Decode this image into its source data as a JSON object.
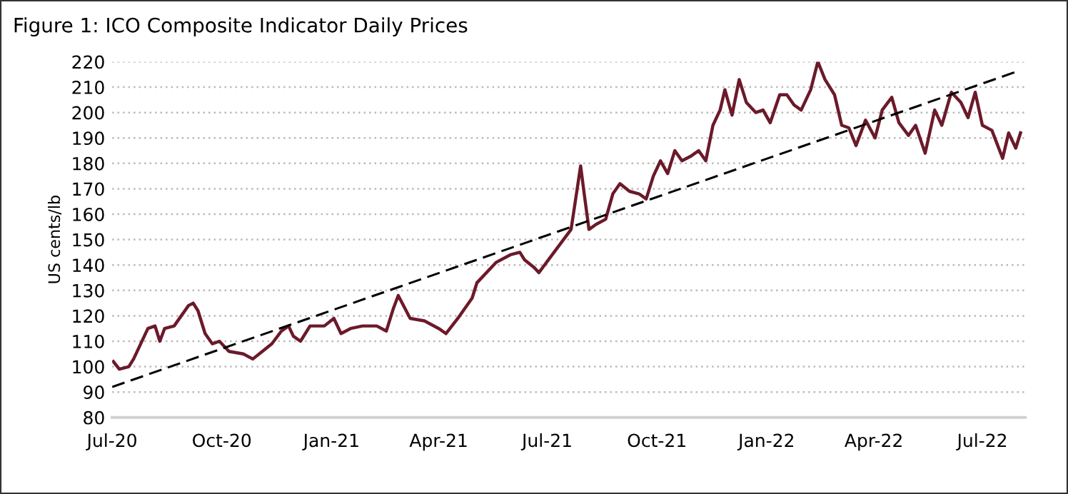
{
  "chart_data": {
    "type": "line",
    "title": "Figure 1: ICO Composite Indicator Daily Prices",
    "ylabel": "US cents/lb",
    "xlim": [
      "2020-07-01",
      "2022-08-06"
    ],
    "ylim": [
      80,
      220
    ],
    "xticks": [
      {
        "value": "2020-07-01",
        "label": "Jul-20"
      },
      {
        "value": "2020-10-01",
        "label": "Oct-20"
      },
      {
        "value": "2021-01-01",
        "label": "Jan-21"
      },
      {
        "value": "2021-04-01",
        "label": "Apr-21"
      },
      {
        "value": "2021-07-01",
        "label": "Jul-21"
      },
      {
        "value": "2021-10-01",
        "label": "Oct-21"
      },
      {
        "value": "2022-01-01",
        "label": "Jan-22"
      },
      {
        "value": "2022-04-01",
        "label": "Apr-22"
      },
      {
        "value": "2022-07-01",
        "label": "Jul-22"
      }
    ],
    "yticks": [
      80,
      90,
      100,
      110,
      120,
      130,
      140,
      150,
      160,
      170,
      180,
      190,
      200,
      210,
      220
    ],
    "grid": "y",
    "marker": "none",
    "series": [
      {
        "color": "#6b1a2a",
        "line_style": "solid",
        "x": [
          "2020-07-02",
          "2020-07-07",
          "2020-07-15",
          "2020-07-19",
          "2020-07-23",
          "2020-07-31",
          "2020-08-06",
          "2020-08-10",
          "2020-08-14",
          "2020-08-22",
          "2020-08-28",
          "2020-09-03",
          "2020-09-07",
          "2020-09-11",
          "2020-09-17",
          "2020-09-23",
          "2020-09-29",
          "2020-10-07",
          "2020-10-19",
          "2020-10-27",
          "2020-11-04",
          "2020-11-12",
          "2020-11-20",
          "2020-11-26",
          "2020-11-30",
          "2020-12-06",
          "2020-12-14",
          "2020-12-26",
          "2021-01-03",
          "2021-01-09",
          "2021-01-17",
          "2021-01-27",
          "2021-02-08",
          "2021-02-16",
          "2021-02-22",
          "2021-02-26",
          "2021-03-08",
          "2021-03-20",
          "2021-04-01",
          "2021-04-07",
          "2021-04-17",
          "2021-04-29",
          "2021-05-03",
          "2021-05-19",
          "2021-05-31",
          "2021-06-08",
          "2021-06-12",
          "2021-06-20",
          "2021-06-24",
          "2021-07-21",
          "2021-07-29",
          "2021-08-01",
          "2021-08-05",
          "2021-08-11",
          "2021-08-19",
          "2021-08-25",
          "2021-08-31",
          "2021-09-08",
          "2021-09-16",
          "2021-09-22",
          "2021-09-28",
          "2021-10-04",
          "2021-10-10",
          "2021-10-16",
          "2021-10-22",
          "2021-10-30",
          "2021-11-05",
          "2021-11-11",
          "2021-11-17",
          "2021-11-23",
          "2021-11-27",
          "2021-12-03",
          "2021-12-09",
          "2021-12-15",
          "2021-12-23",
          "2021-12-29",
          "2022-01-04",
          "2022-01-12",
          "2022-01-18",
          "2022-01-24",
          "2022-01-30",
          "2022-02-07",
          "2022-02-13",
          "2022-02-19",
          "2022-02-27",
          "2022-03-05",
          "2022-03-11",
          "2022-03-17",
          "2022-03-25",
          "2022-04-02",
          "2022-04-08",
          "2022-04-16",
          "2022-04-22",
          "2022-04-30",
          "2022-05-06",
          "2022-05-14",
          "2022-05-22",
          "2022-05-28",
          "2022-06-05",
          "2022-06-13",
          "2022-06-19",
          "2022-06-25",
          "2022-07-01",
          "2022-07-09",
          "2022-07-18",
          "2022-07-23",
          "2022-07-29",
          "2022-08-02"
        ],
        "values": [
          102,
          99,
          100,
          103,
          107,
          115,
          116,
          110,
          115,
          116,
          120,
          124,
          125,
          122,
          113,
          109,
          110,
          106,
          105,
          103,
          106,
          109,
          114,
          116,
          112,
          110,
          116,
          116,
          119,
          113,
          115,
          116,
          116,
          114,
          123,
          128,
          119,
          118,
          115,
          113,
          119,
          127,
          133,
          141,
          144,
          145,
          142,
          139,
          137,
          154,
          179,
          168,
          154,
          156,
          158,
          168,
          172,
          169,
          168,
          166,
          175,
          181,
          176,
          185,
          181,
          183,
          185,
          181,
          195,
          201,
          209,
          199,
          213,
          204,
          200,
          201,
          196,
          207,
          207,
          203,
          201,
          209,
          220,
          213,
          207,
          195,
          194,
          187,
          197,
          190,
          201,
          206,
          196,
          191,
          195,
          184,
          201,
          195,
          208,
          204,
          198,
          208,
          195,
          193,
          182,
          192,
          186,
          192
        ]
      },
      {
        "type": "line",
        "color": "#000000",
        "line_style": "dashed",
        "x": [
          "2020-07-01",
          "2022-07-29"
        ],
        "values": [
          92,
          216
        ]
      }
    ]
  }
}
